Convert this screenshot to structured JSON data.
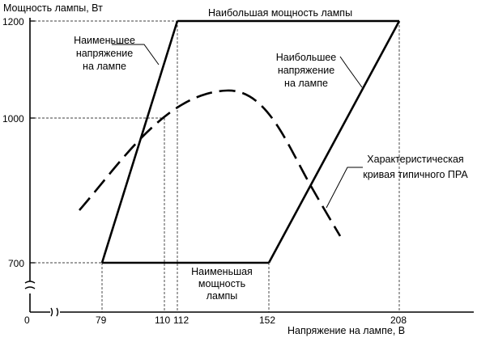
{
  "axes": {
    "y_label": "Мощность лампы, Вт",
    "x_label": "Напряжение на лампе, В",
    "origin": "0",
    "y_ticks": [
      "1200",
      "1000",
      "700"
    ],
    "x_ticks": [
      "79",
      "110",
      "112",
      "152",
      "208"
    ]
  },
  "labels": {
    "top_edge": "Наибольшая мощность лампы",
    "left_line": [
      "Наименьшее",
      "напряжение",
      "на лампе"
    ],
    "right_line": [
      "Наибольшее",
      "напряжение",
      "на лампе"
    ],
    "bottom_edge": [
      "Наименьшая",
      "мощность",
      "лампы"
    ],
    "curve": [
      "Характеристическая",
      "кривая типичного ПРА"
    ]
  },
  "diagram_data": {
    "trapezoid_corners_V_W": [
      [
        79,
        700
      ],
      [
        112,
        1200
      ],
      [
        208,
        1200
      ],
      [
        152,
        700
      ]
    ],
    "reference_points": {
      "voltages_V": [
        79,
        110,
        112,
        152,
        208
      ],
      "powers_W": [
        700,
        1000,
        1200
      ]
    }
  },
  "style": {
    "line_color": "#000000",
    "guide_color": "#000000",
    "background": "#ffffff"
  }
}
